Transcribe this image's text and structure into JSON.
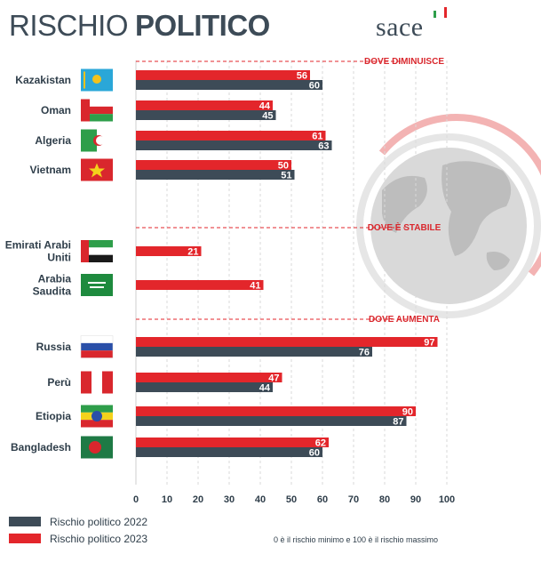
{
  "title": {
    "part1": "RISCHIO",
    "part2": "POLITICO"
  },
  "logo": {
    "text": "sace"
  },
  "chart_data": {
    "type": "bar",
    "orientation": "horizontal",
    "xlim": [
      0,
      100
    ],
    "ticks": [
      0,
      10,
      20,
      30,
      40,
      50,
      60,
      70,
      80,
      90,
      100
    ],
    "grid": true,
    "series": [
      {
        "name": "Rischio politico 2023",
        "color": "#e3262b"
      },
      {
        "name": "Rischio politico 2022",
        "color": "#3d4b57"
      }
    ],
    "groups": [
      {
        "label": "DOVE DIMINUISCE",
        "countries": [
          {
            "name": "Kazakistan",
            "flag": "kazakhstan-flag",
            "v2023": 56,
            "v2022": 60
          },
          {
            "name": "Oman",
            "flag": "oman-flag",
            "v2023": 44,
            "v2022": 45
          },
          {
            "name": "Algeria",
            "flag": "algeria-flag",
            "v2023": 61,
            "v2022": 63
          },
          {
            "name": "Vietnam",
            "flag": "vietnam-flag",
            "v2023": 50,
            "v2022": 51
          }
        ]
      },
      {
        "label": "DOVE È STABILE",
        "countries": [
          {
            "name": [
              "Emirati Arabi",
              "Uniti"
            ],
            "flag": "uae-flag",
            "v2023": 21,
            "v2022": null
          },
          {
            "name": [
              "Arabia",
              "Saudita"
            ],
            "flag": "saudi-arabia-flag",
            "v2023": 41,
            "v2022": null
          }
        ]
      },
      {
        "label": "DOVE AUMENTA",
        "countries": [
          {
            "name": "Russia",
            "flag": "russia-flag",
            "v2023": 97,
            "v2022": 76
          },
          {
            "name": "Perù",
            "flag": "peru-flag",
            "v2023": 47,
            "v2022": 44
          },
          {
            "name": "Etiopia",
            "flag": "ethiopia-flag",
            "v2023": 90,
            "v2022": 87
          },
          {
            "name": "Bangladesh",
            "flag": "bangladesh-flag",
            "v2023": 62,
            "v2022": 60
          }
        ]
      }
    ],
    "legend": [
      {
        "label": "Rischio politico 2022",
        "color": "#3d4b57"
      },
      {
        "label": "Rischio politico 2023",
        "color": "#e3262b"
      }
    ],
    "note": "0 è il rischio minimo e 100 è il rischio massimo"
  }
}
